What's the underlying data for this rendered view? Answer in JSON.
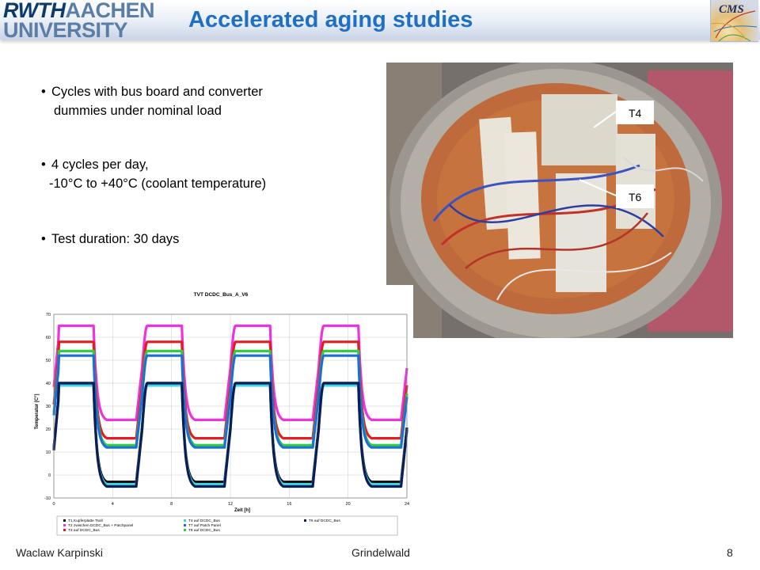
{
  "header": {
    "logo_line1_part1": "RWTH",
    "logo_line1_part2": "AACHEN",
    "logo_line2": "UNIVERSITY",
    "title": "Accelerated aging studies",
    "cms_logo_text": "CMS"
  },
  "bullets": [
    {
      "line1": "Cycles with bus board and converter",
      "line2": "dummies under nominal load"
    },
    {
      "line1": "4 cycles per day,",
      "line2": "-10°C to +40°C (coolant temperature)"
    },
    {
      "line1": "Test duration: 30 days",
      "line2": ""
    }
  ],
  "photo": {
    "labels": [
      "T4",
      "T6"
    ]
  },
  "chart_data": {
    "type": "line",
    "title": "TVT DCDC_Bus_A_V6",
    "xlabel": "Zeit [h]",
    "ylabel": "Temperatur [C°]",
    "xlim": [
      0,
      24
    ],
    "ylim": [
      -10,
      70
    ],
    "x_ticks": [
      "0",
      "4",
      "8",
      "12",
      "16",
      "20",
      "24"
    ],
    "y_ticks": [
      "70",
      "60",
      "50",
      "40",
      "30",
      "20",
      "10",
      "0",
      "-10"
    ],
    "grid": true,
    "cycle_period_h": 6,
    "series": [
      {
        "name": "T2 zwischen DCDC_Bus + Patchpanel",
        "color": "#ee33dd",
        "high": 65,
        "low": 24
      },
      {
        "name": "T3 auf DCDC_Bus",
        "color": "#e21d22",
        "high": 58,
        "low": 16
      },
      {
        "name": "T8 auf DCDC_Bus",
        "color": "#2bd23a",
        "high": 54,
        "low": 13
      },
      {
        "name": "T7 auf Patch Panel",
        "color": "#1b6fd8",
        "high": 52,
        "low": 12
      },
      {
        "name": "T1 Kupferplatte Tsoll",
        "color": "#0a0a0a",
        "high": 40,
        "low": -3
      },
      {
        "name": "T4 auf DCDC_Bus",
        "color": "#37d8e4",
        "high": 39,
        "low": -4
      },
      {
        "name": "T6 auf DCDC_Bus",
        "color": "#0d1c52",
        "high": 40,
        "low": -5
      }
    ],
    "legend": {
      "placement": "bottom",
      "entries": [
        {
          "text": "T1 Kupferplatte Tsoll",
          "color": "#0a0a0a"
        },
        {
          "text": "T2 zwischen DCDC_Bus + Patchpanel",
          "color": "#ee33dd"
        },
        {
          "text": "T3 auf DCDC_Bus",
          "color": "#e21d22"
        },
        {
          "text": "T4 auf DCDC_Bus",
          "color": "#37d8e4"
        },
        {
          "text": "T7 auf Patch Panel",
          "color": "#1b6fd8"
        },
        {
          "text": "T8 auf DCDC_Bus",
          "color": "#2bd23a"
        },
        {
          "text": "T6 auf DCDC_Bus",
          "color": "#0d1c52"
        }
      ]
    }
  },
  "footer": {
    "author": "Waclaw Karpinski",
    "venue": "Grindelwald",
    "page": "8"
  }
}
